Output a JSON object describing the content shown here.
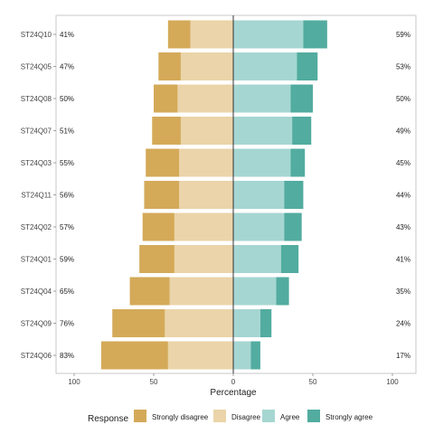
{
  "chart_data": {
    "type": "bar",
    "orientation": "horizontal-diverging",
    "xlabel": "Percentage",
    "xlim": [
      -100,
      100
    ],
    "x_ticks": [
      -100,
      -50,
      0,
      50,
      100
    ],
    "x_tick_labels": [
      "100",
      "50",
      "0",
      "50",
      "100"
    ],
    "grid": false,
    "legend": {
      "position": "bottom",
      "title": "Response"
    },
    "categories": [
      "ST24Q10",
      "ST24Q05",
      "ST24Q08",
      "ST24Q07",
      "ST24Q03",
      "ST24Q11",
      "ST24Q02",
      "ST24Q01",
      "ST24Q04",
      "ST24Q09",
      "ST24Q06"
    ],
    "left_percent_labels": [
      "41%",
      "47%",
      "50%",
      "51%",
      "55%",
      "56%",
      "57%",
      "59%",
      "65%",
      "76%",
      "83%"
    ],
    "right_percent_labels": [
      "59%",
      "53%",
      "50%",
      "49%",
      "45%",
      "44%",
      "43%",
      "41%",
      "35%",
      "24%",
      "17%"
    ],
    "series": [
      {
        "name": "Strongly disagree",
        "color": "#D4AA59",
        "side": "negative",
        "values": [
          14,
          14,
          15,
          18,
          21,
          22,
          20,
          22,
          25,
          33,
          42
        ]
      },
      {
        "name": "Disagree",
        "color": "#EBD4A9",
        "side": "negative",
        "values": [
          27,
          33,
          35,
          33,
          34,
          34,
          37,
          37,
          40,
          43,
          41
        ]
      },
      {
        "name": "Agree",
        "color": "#A6D6D2",
        "side": "positive",
        "values": [
          44,
          40,
          36,
          37,
          36,
          32,
          32,
          30,
          27,
          17,
          11
        ]
      },
      {
        "name": "Strongly agree",
        "color": "#52AC9F",
        "side": "positive",
        "values": [
          15,
          13,
          14,
          12,
          9,
          12,
          11,
          11,
          8,
          7,
          6
        ]
      }
    ]
  }
}
